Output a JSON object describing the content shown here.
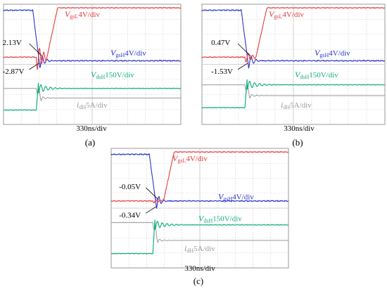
{
  "figure": {
    "panels": [
      {
        "id": "a",
        "caption": "(a)",
        "timebase": "330ns/div",
        "annotations": {
          "upper": "2.13V",
          "lower": "-2.87V"
        },
        "labels": {
          "vgsL": {
            "var": "V",
            "sub": "gsL",
            "unit": "4V/div"
          },
          "vgsH": {
            "var": "V",
            "sub": "gsH",
            "unit": "4V/div"
          },
          "vdsH": {
            "var": "V",
            "sub": "dsH",
            "unit": "150V/div"
          },
          "idH": {
            "var": "i",
            "sub": "dH",
            "unit": "5A/div"
          }
        }
      },
      {
        "id": "b",
        "caption": "(b)",
        "timebase": "330ns/div",
        "annotations": {
          "upper": "0.47V",
          "lower": "-1.53V"
        },
        "labels": {
          "vgsL": {
            "var": "V",
            "sub": "gsL",
            "unit": "4V/div"
          },
          "vgsH": {
            "var": "V",
            "sub": "gsH",
            "unit": "4V/div"
          },
          "vdsH": {
            "var": "V",
            "sub": "dsH",
            "unit": "150V/div"
          },
          "idH": {
            "var": "i",
            "sub": "dH",
            "unit": "5A/div"
          }
        }
      },
      {
        "id": "c",
        "caption": "(c)",
        "timebase": "330ns/div",
        "annotations": {
          "upper": "-0.05V",
          "lower": "-0.34V"
        },
        "labels": {
          "vgsL": {
            "var": "V",
            "sub": "gsL",
            "unit": "4V/div"
          },
          "vgsH": {
            "var": "V",
            "sub": "gsH",
            "unit": "4V/div"
          },
          "vdsH": {
            "var": "V",
            "sub": "dsH",
            "unit": "150V/div"
          },
          "idH": {
            "var": "i",
            "sub": "dH",
            "unit": "5A/div"
          }
        }
      }
    ]
  },
  "colors": {
    "vgsL": "#e8393a",
    "vgsH": "#2a35c8",
    "vdsH": "#14b07a",
    "idH": "#9a9a9a",
    "grid": "#c9c9c9",
    "frame": "#9a9a9a",
    "text": "#000000"
  }
}
